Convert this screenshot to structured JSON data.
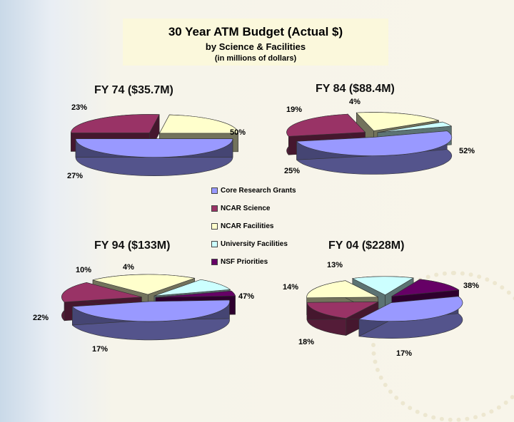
{
  "title": "30 Year ATM Budget (Actual $)",
  "subtitle": "by Science & Facilities",
  "subtitle2": "(in millions of dollars)",
  "colors": {
    "Core Research Grants": "#9999ff",
    "NCAR Science": "#993366",
    "NCAR Facilities": "#ffffcc",
    "University Facilities": "#ccffff",
    "NSF Priorities": "#660066"
  },
  "chart_data": [
    {
      "type": "pie",
      "title": "FY 74 ($35.7M)",
      "categories": [
        "Core Research Grants",
        "NCAR Science",
        "NCAR Facilities"
      ],
      "values": [
        50,
        27,
        23
      ],
      "labels": [
        "50%",
        "27%",
        "23%"
      ]
    },
    {
      "type": "pie",
      "title": "FY 84 ($88.4M)",
      "categories": [
        "Core Research Grants",
        "NCAR Science",
        "NCAR Facilities",
        "University Facilities"
      ],
      "values": [
        52,
        25,
        19,
        4
      ],
      "labels": [
        "52%",
        "25%",
        "19%",
        "4%"
      ]
    },
    {
      "type": "pie",
      "title": "FY 94 ($133M)",
      "categories": [
        "Core Research Grants",
        "NCAR Science",
        "NCAR Facilities",
        "University Facilities",
        "NSF Priorities"
      ],
      "values": [
        47,
        17,
        22,
        10,
        4
      ],
      "labels": [
        "47%",
        "17%",
        "22%",
        "10%",
        "4%"
      ]
    },
    {
      "type": "pie",
      "title": "FY 04 ($228M)",
      "categories": [
        "Core Research Grants",
        "NCAR Science",
        "NCAR Facilities",
        "University Facilities",
        "NSF Priorities"
      ],
      "values": [
        38,
        17,
        18,
        14,
        13
      ],
      "labels": [
        "38%",
        "17%",
        "18%",
        "14%",
        "13%"
      ]
    }
  ],
  "legend": [
    "Core Research Grants",
    "NCAR Science",
    "NCAR Facilities",
    "University Facilities",
    "NSF Priorities"
  ]
}
